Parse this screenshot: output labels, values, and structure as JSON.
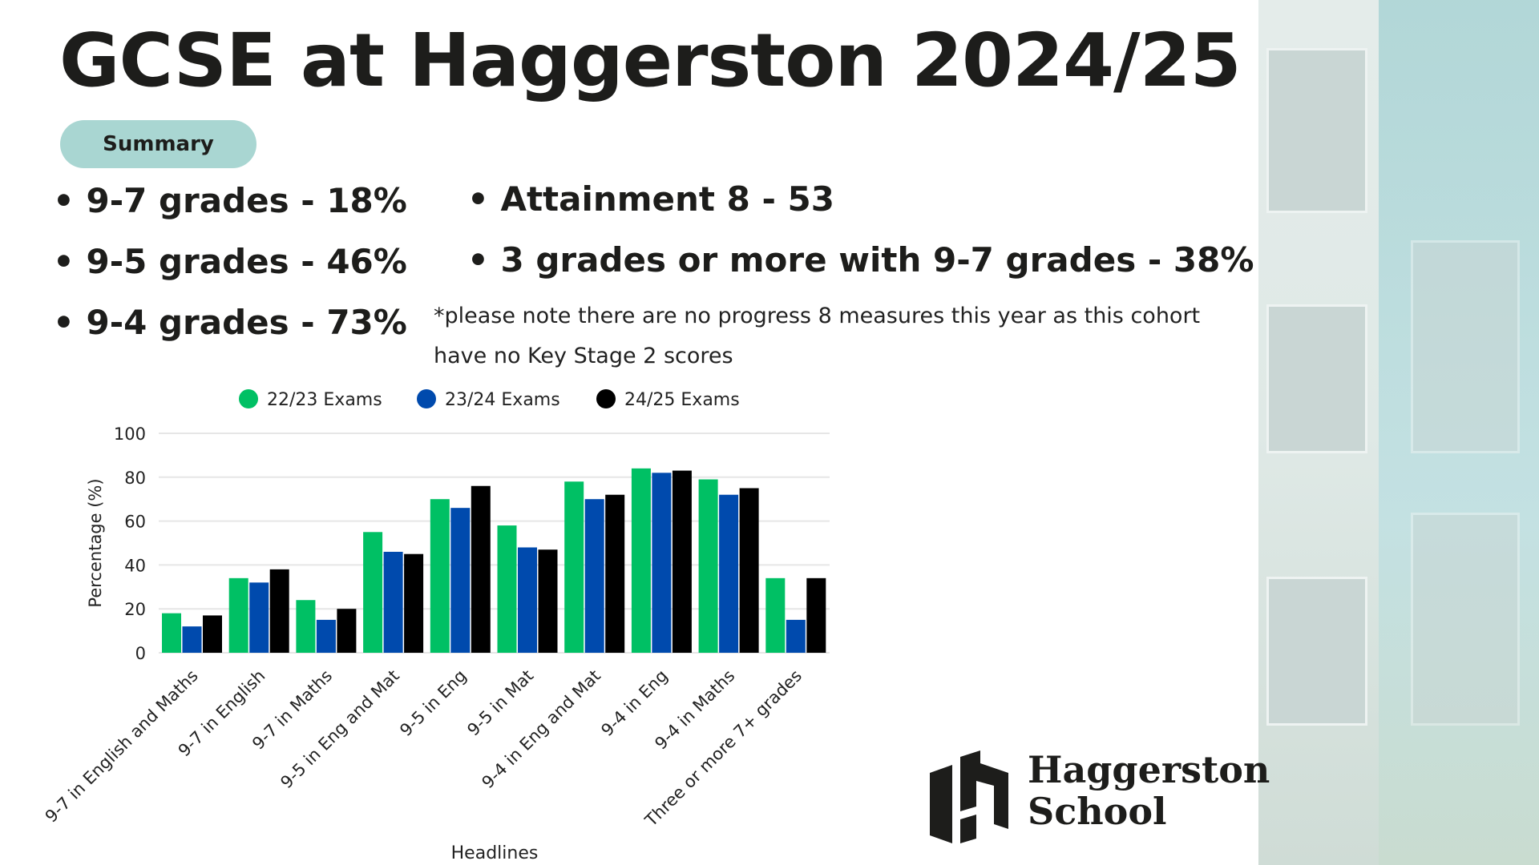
{
  "title": "GCSE at Haggerston 2024/25",
  "summary_label": "Summary",
  "left_bullets": [
    "9-7 grades - 18%",
    "9-5 grades - 46%",
    "9-4 grades - 73%"
  ],
  "right_bullets": [
    "Attainment 8 - 53",
    "3 grades or more with 9-7 grades - 38%"
  ],
  "note_line1": "*please note there are no progress 8 measures this year as this cohort",
  "note_line2": "have no Key Stage 2 scores",
  "logo": {
    "line1": "Haggerston",
    "line2": "School"
  },
  "chart_data": {
    "type": "bar",
    "xlabel": "Headlines",
    "ylabel": "Percentage (%)",
    "ylim": [
      0,
      100
    ],
    "yticks": [
      0,
      20,
      40,
      60,
      80,
      100
    ],
    "grid": true,
    "legend_placement": "top",
    "categories": [
      "9-7 in English and Maths",
      "9-7 in English",
      "9-7 in Maths",
      "9-5 in Eng and Mat",
      "9-5 in Eng",
      "9-5 in Mat",
      "9-4 in Eng and Mat",
      "9-4 in Eng",
      "9-4 in Maths",
      "Three or more 7+ grades"
    ],
    "series": [
      {
        "name": "22/23 Exams",
        "color": "#00c064",
        "values": [
          18,
          34,
          24,
          55,
          70,
          58,
          78,
          84,
          79,
          34
        ]
      },
      {
        "name": "23/24 Exams",
        "color": "#004aad",
        "values": [
          12,
          32,
          15,
          46,
          66,
          48,
          70,
          82,
          72,
          15
        ]
      },
      {
        "name": "24/25 Exams",
        "color": "#000000",
        "values": [
          17,
          38,
          20,
          45,
          76,
          47,
          72,
          83,
          75,
          34
        ]
      }
    ]
  }
}
